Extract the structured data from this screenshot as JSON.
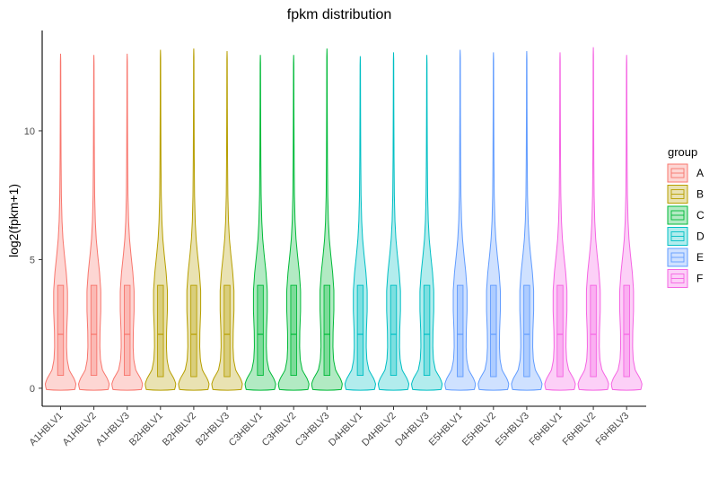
{
  "chart_data": {
    "type": "violin",
    "title": "fpkm distribution",
    "xlabel": "",
    "ylabel": "log2(fpkm+1)",
    "ylim": [
      -0.7,
      13.9
    ],
    "yticks": [
      0,
      5,
      10
    ],
    "grid": false,
    "legend": {
      "title": "group",
      "placement": "right",
      "entries": [
        {
          "name": "A",
          "color": "#F8766D"
        },
        {
          "name": "B",
          "color": "#B79F00"
        },
        {
          "name": "C",
          "color": "#00BA38"
        },
        {
          "name": "D",
          "color": "#00BFC4"
        },
        {
          "name": "E",
          "color": "#619CFF"
        },
        {
          "name": "F",
          "color": "#F564E3"
        }
      ]
    },
    "categories": [
      {
        "label": "A1HBLV1",
        "group": "A",
        "max": 13.0,
        "q1": 0.5,
        "median": 2.1,
        "q3": 4.0
      },
      {
        "label": "A1HBLV2",
        "group": "A",
        "max": 12.95,
        "q1": 0.5,
        "median": 2.1,
        "q3": 4.0
      },
      {
        "label": "A1HBLV3",
        "group": "A",
        "max": 13.0,
        "q1": 0.5,
        "median": 2.1,
        "q3": 4.0
      },
      {
        "label": "B2HBLV1",
        "group": "B",
        "max": 13.15,
        "q1": 0.45,
        "median": 2.1,
        "q3": 4.0
      },
      {
        "label": "B2HBLV2",
        "group": "B",
        "max": 13.2,
        "q1": 0.45,
        "median": 2.1,
        "q3": 4.0
      },
      {
        "label": "B2HBLV3",
        "group": "B",
        "max": 13.1,
        "q1": 0.45,
        "median": 2.1,
        "q3": 4.0
      },
      {
        "label": "C3HBLV1",
        "group": "C",
        "max": 12.95,
        "q1": 0.5,
        "median": 2.1,
        "q3": 4.0
      },
      {
        "label": "C3HBLV2",
        "group": "C",
        "max": 12.95,
        "q1": 0.5,
        "median": 2.1,
        "q3": 4.0
      },
      {
        "label": "C3HBLV3",
        "group": "C",
        "max": 13.2,
        "q1": 0.5,
        "median": 2.1,
        "q3": 4.0
      },
      {
        "label": "D4HBLV1",
        "group": "D",
        "max": 12.9,
        "q1": 0.5,
        "median": 2.1,
        "q3": 4.0
      },
      {
        "label": "D4HBLV2",
        "group": "D",
        "max": 13.05,
        "q1": 0.5,
        "median": 2.1,
        "q3": 4.0
      },
      {
        "label": "D4HBLV3",
        "group": "D",
        "max": 12.95,
        "q1": 0.5,
        "median": 2.1,
        "q3": 4.0
      },
      {
        "label": "E5HBLV1",
        "group": "E",
        "max": 13.15,
        "q1": 0.45,
        "median": 2.1,
        "q3": 4.0
      },
      {
        "label": "E5HBLV2",
        "group": "E",
        "max": 13.05,
        "q1": 0.45,
        "median": 2.1,
        "q3": 4.0
      },
      {
        "label": "E5HBLV3",
        "group": "E",
        "max": 13.1,
        "q1": 0.45,
        "median": 2.1,
        "q3": 4.0
      },
      {
        "label": "F6HBLV1",
        "group": "F",
        "max": 13.05,
        "q1": 0.45,
        "median": 2.1,
        "q3": 4.0
      },
      {
        "label": "F6HBLV2",
        "group": "F",
        "max": 13.25,
        "q1": 0.45,
        "median": 2.1,
        "q3": 4.0
      },
      {
        "label": "F6HBLV3",
        "group": "F",
        "max": 12.95,
        "q1": 0.45,
        "median": 2.1,
        "q3": 4.0
      }
    ]
  }
}
